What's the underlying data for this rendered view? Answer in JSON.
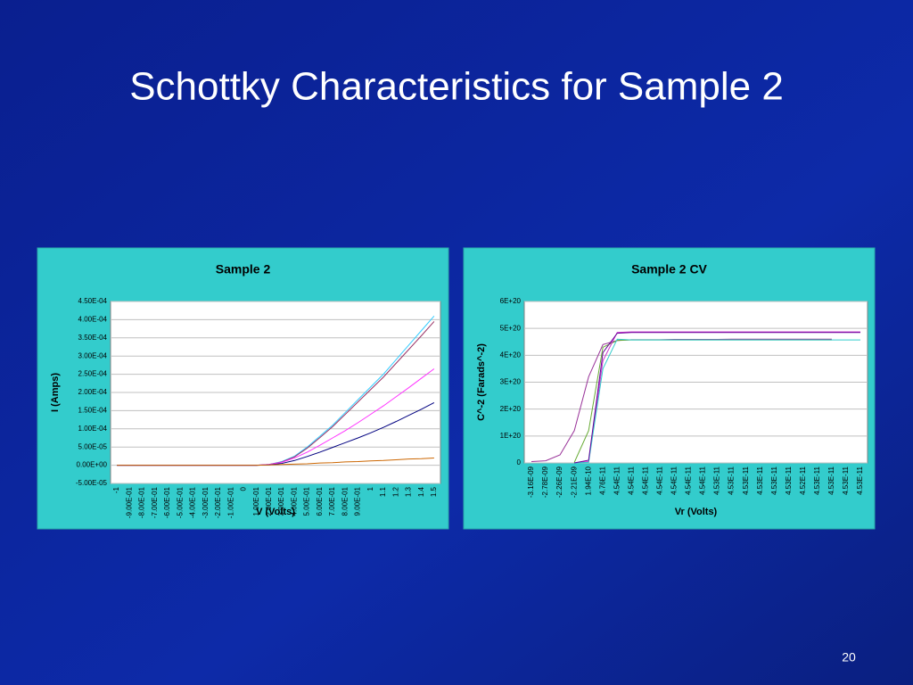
{
  "title": "Schottky Characteristics for Sample 2",
  "page_number": "20",
  "chart_data": [
    {
      "type": "line",
      "title": "Sample 2",
      "x_label": "V (Volts)",
      "y_label": "I (Amps)",
      "categories": [
        "-1",
        "-9.00E-01",
        "-8.00E-01",
        "-7.00E-01",
        "-6.00E-01",
        "-5.00E-01",
        "-4.00E-01",
        "-3.00E-01",
        "-2.00E-01",
        "-1.00E-01",
        "0",
        "1.00E-01",
        "2.00E-01",
        "3.00E-01",
        "4.00E-01",
        "5.00E-01",
        "6.00E-01",
        "7.00E-01",
        "8.00E-01",
        "9.00E-01",
        "1",
        "1.1",
        "1.2",
        "1.3",
        "1.4",
        "1.5"
      ],
      "ylim": [
        -5e-05,
        0.00045
      ],
      "yticks": [
        {
          "value": -5e-05,
          "label": "-5.00E-05"
        },
        {
          "value": 0,
          "label": "0.00E+00"
        },
        {
          "value": 5e-05,
          "label": "5.00E-05"
        },
        {
          "value": 0.0001,
          "label": "1.00E-04"
        },
        {
          "value": 0.00015,
          "label": "1.50E-04"
        },
        {
          "value": 0.0002,
          "label": "2.00E-04"
        },
        {
          "value": 0.00025,
          "label": "2.50E-04"
        },
        {
          "value": 0.0003,
          "label": "3.00E-04"
        },
        {
          "value": 0.00035,
          "label": "3.50E-04"
        },
        {
          "value": 0.0004,
          "label": "4.00E-04"
        },
        {
          "value": 0.00045,
          "label": "4.50E-04"
        }
      ],
      "grid": true,
      "series": [
        {
          "color": "#33ccff",
          "values": [
            0,
            0,
            0,
            0,
            0,
            0,
            0,
            0,
            0,
            0,
            0,
            0,
            2e-06,
            1e-05,
            2.5e-05,
            5e-05,
            8e-05,
            0.00011,
            0.000145,
            0.00018,
            0.000215,
            0.00025,
            0.00029,
            0.00033,
            0.00037,
            0.00041
          ]
        },
        {
          "color": "#993366",
          "values": [
            0,
            0,
            0,
            0,
            0,
            0,
            0,
            0,
            0,
            0,
            0,
            0,
            2e-06,
            9e-06,
            2.3e-05,
            4.7e-05,
            7.6e-05,
            0.000106,
            0.00014,
            0.000174,
            0.000208,
            0.000242,
            0.00028,
            0.000318,
            0.000356,
            0.000395
          ]
        },
        {
          "color": "#ff33ff",
          "values": [
            0,
            0,
            0,
            0,
            0,
            0,
            0,
            0,
            0,
            0,
            0,
            0,
            2e-06,
            8e-06,
            2e-05,
            3.6e-05,
            5.5e-05,
            7.5e-05,
            9.5e-05,
            0.000117,
            0.00014,
            0.000163,
            0.000188,
            0.000213,
            0.000239,
            0.000265
          ]
        },
        {
          "color": "#000080",
          "values": [
            0,
            0,
            0,
            0,
            0,
            0,
            0,
            0,
            0,
            0,
            0,
            0,
            1e-06,
            5e-06,
            1.3e-05,
            2.4e-05,
            3.6e-05,
            4.9e-05,
            6.2e-05,
            7.5e-05,
            8.9e-05,
            0.000104,
            0.00012,
            0.000137,
            0.000154,
            0.000172
          ]
        },
        {
          "color": "#cc6600",
          "values": [
            0,
            0,
            0,
            0,
            0,
            0,
            0,
            0,
            0,
            0,
            0,
            0,
            1e-06,
            2e-06,
            3e-06,
            4e-06,
            6e-06,
            7e-06,
            9e-06,
            1e-05,
            1.2e-05,
            1.3e-05,
            1.5e-05,
            1.7e-05,
            1.8e-05,
            2e-05
          ]
        }
      ]
    },
    {
      "type": "line",
      "title": "Sample 2 CV",
      "x_label": "Vr (Volts)",
      "y_label": "C^-2 (Farads^-2)",
      "categories": [
        "-3.16E-09",
        "-2.78E-09",
        "-2.26E-09",
        "-2.21E-09",
        "1.94E-10",
        "4.76E-11",
        "4.54E-11",
        "4.54E-11",
        "4.54E-11",
        "4.54E-11",
        "4.54E-11",
        "4.54E-11",
        "4.54E-11",
        "4.53E-11",
        "4.53E-11",
        "4.53E-11",
        "4.53E-11",
        "4.53E-11",
        "4.53E-11",
        "4.52E-11",
        "4.53E-11",
        "4.53E-11",
        "4.53E-11",
        "4.53E-11"
      ],
      "ylim": [
        0,
        6e+20
      ],
      "yticks": [
        0,
        {
          "value": 1e+20,
          "label": "1E+20"
        },
        {
          "value": 2e+20,
          "label": "2E+20"
        },
        {
          "value": 3e+20,
          "label": "3E+20"
        },
        {
          "value": 4e+20,
          "label": "4E+20"
        },
        {
          "value": 5e+20,
          "label": "5E+20"
        },
        {
          "value": 6e+20,
          "label": "6E+20"
        }
      ],
      "grid": true,
      "series": [
        {
          "color": "#993399",
          "values": [
            5e+18,
            8e+18,
            3e+19,
            1.2e+20,
            3.2e+20,
            4.4e+20,
            4.55e+20,
            4.58e+20,
            4.58e+20,
            4.58e+20,
            4.59e+20,
            4.59e+20,
            4.59e+20,
            4.59e+20,
            4.6e+20,
            4.6e+20,
            4.6e+20,
            4.6e+20,
            4.6e+20,
            4.6e+20,
            4.6e+20,
            4.6e+20,
            null,
            null
          ]
        },
        {
          "color": "#66aa33",
          "values": [
            null,
            null,
            null,
            2e+18,
            1.2e+20,
            4.3e+20,
            4.55e+20,
            4.57e+20,
            4.57e+20,
            4.57e+20,
            4.57e+20,
            4.57e+20,
            4.57e+20,
            4.57e+20,
            4.57e+20,
            4.57e+20,
            4.57e+20,
            4.57e+20,
            4.57e+20,
            4.57e+20,
            4.57e+20,
            4.57e+20,
            null,
            null
          ]
        },
        {
          "color": "#cc33cc",
          "values": [
            null,
            null,
            null,
            0,
            5e+18,
            3.8e+20,
            4.85e+20,
            4.87e+20,
            4.87e+20,
            4.87e+20,
            4.87e+20,
            4.87e+20,
            4.87e+20,
            4.87e+20,
            4.87e+20,
            4.87e+20,
            4.87e+20,
            4.87e+20,
            4.87e+20,
            4.87e+20,
            4.87e+20,
            4.87e+20,
            4.87e+20,
            4.87e+20
          ]
        },
        {
          "color": "#33cccc",
          "values": [
            null,
            null,
            null,
            0,
            2e+18,
            3.5e+20,
            4.6e+20,
            4.57e+20,
            4.57e+20,
            4.57e+20,
            4.57e+20,
            4.57e+20,
            4.57e+20,
            4.57e+20,
            4.57e+20,
            4.57e+20,
            4.57e+20,
            4.57e+20,
            4.57e+20,
            4.57e+20,
            4.57e+20,
            4.57e+20,
            4.57e+20,
            4.57e+20
          ]
        },
        {
          "color": "#660099",
          "values": [
            null,
            null,
            null,
            0,
            1e+19,
            4.1e+20,
            4.82e+20,
            4.85e+20,
            4.85e+20,
            4.85e+20,
            4.85e+20,
            4.85e+20,
            4.85e+20,
            4.85e+20,
            4.85e+20,
            4.85e+20,
            4.85e+20,
            4.85e+20,
            4.85e+20,
            4.85e+20,
            4.85e+20,
            4.85e+20,
            4.85e+20,
            4.85e+20
          ]
        }
      ]
    }
  ]
}
